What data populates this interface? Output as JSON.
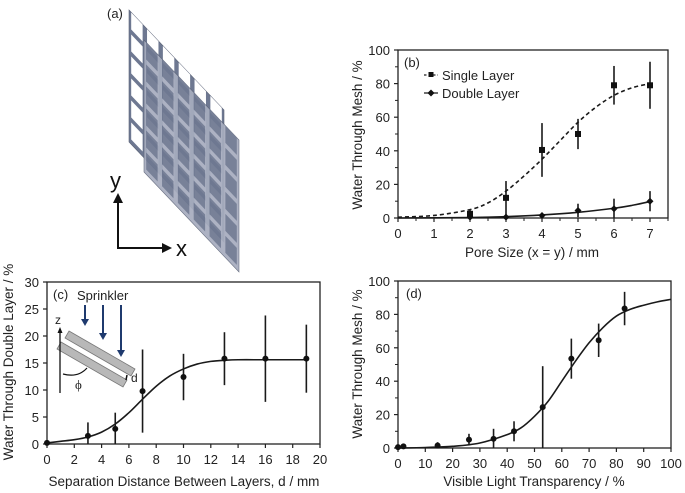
{
  "figure": {
    "panel_a": {
      "label": "(a)",
      "axis_y_label": "y",
      "axis_x_label": "x",
      "mesh_back_color": "#6e7891",
      "mesh_front_color": "#a7adbf",
      "grid_cells": 6
    }
  },
  "chart_data": [
    {
      "id": "b",
      "type": "line",
      "panel_label": "(b)",
      "title": "",
      "xlabel": "Pore Size (x = y) / mm",
      "ylabel": "Water Through Mesh / %",
      "xlim": [
        0,
        7.5
      ],
      "ylim": [
        0,
        100
      ],
      "xticks": [
        0,
        1,
        2,
        3,
        4,
        5,
        6,
        7
      ],
      "yticks": [
        0,
        20,
        40,
        60,
        80,
        100
      ],
      "grid": false,
      "legend": "top-left",
      "series": [
        {
          "name": "Single Layer",
          "marker": "square",
          "line": "dashed",
          "x": [
            2,
            3,
            4,
            5,
            6,
            7
          ],
          "y": [
            2.5,
            12,
            40.5,
            50,
            79,
            79
          ],
          "err": [
            2.5,
            10,
            16,
            9,
            11.5,
            14
          ],
          "fit": [
            [
              0,
              0.5
            ],
            [
              1,
              1.5
            ],
            [
              2,
              5
            ],
            [
              2.5,
              9
            ],
            [
              3,
              16
            ],
            [
              3.5,
              25
            ],
            [
              4,
              35
            ],
            [
              4.5,
              46
            ],
            [
              5,
              57
            ],
            [
              5.5,
              66
            ],
            [
              6,
              73
            ],
            [
              6.5,
              77.5
            ],
            [
              7,
              80
            ]
          ]
        },
        {
          "name": "Double Layer",
          "marker": "diamond",
          "line": "solid",
          "x": [
            2,
            3,
            4,
            5,
            6,
            7
          ],
          "y": [
            0.5,
            0.5,
            1.5,
            4.5,
            5.5,
            10
          ],
          "err": [
            1,
            0.5,
            1.5,
            4,
            6,
            6
          ],
          "fit": [
            [
              0,
              0
            ],
            [
              2,
              0.3
            ],
            [
              3,
              0.8
            ],
            [
              4,
              1.8
            ],
            [
              5,
              3.4
            ],
            [
              6,
              5.8
            ],
            [
              6.5,
              7.5
            ],
            [
              7,
              9.8
            ]
          ]
        }
      ]
    },
    {
      "id": "c",
      "type": "line",
      "panel_label": "(c)",
      "title": "",
      "xlabel": "Separation Distance Between Layers, d / mm",
      "ylabel": "Water Through Double Layer / %",
      "xlim": [
        0,
        20
      ],
      "ylim": [
        0,
        30
      ],
      "xticks": [
        0,
        2,
        4,
        6,
        8,
        10,
        12,
        14,
        16,
        18,
        20
      ],
      "yticks": [
        0,
        5,
        10,
        15,
        20,
        25,
        30
      ],
      "grid": false,
      "legend": "none",
      "inset": {
        "sprinkler_label": "Sprinkler",
        "z_label": "z",
        "phi_label": "ϕ",
        "d_label": "d",
        "arrow_color": "#1f3a6e"
      },
      "series": [
        {
          "name": "Double Layer",
          "marker": "circle",
          "line": "solid",
          "x": [
            0,
            3,
            5,
            7,
            10,
            13,
            16,
            19
          ],
          "y": [
            0.2,
            1.5,
            2.8,
            9.8,
            12.4,
            15.8,
            15.8,
            15.8
          ],
          "err": [
            0,
            2.5,
            3,
            7.7,
            4.3,
            4.9,
            8,
            6.3
          ],
          "fit": [
            [
              0,
              0.2
            ],
            [
              1,
              0.5
            ],
            [
              2,
              0.8
            ],
            [
              3,
              1.3
            ],
            [
              4,
              2.2
            ],
            [
              5,
              3.7
            ],
            [
              6,
              5.8
            ],
            [
              7,
              8.3
            ],
            [
              8,
              10.7
            ],
            [
              9,
              12.6
            ],
            [
              10,
              13.9
            ],
            [
              11,
              14.8
            ],
            [
              12,
              15.3
            ],
            [
              13,
              15.5
            ],
            [
              14,
              15.6
            ],
            [
              16,
              15.6
            ],
            [
              19,
              15.6
            ]
          ]
        }
      ]
    },
    {
      "id": "d",
      "type": "line",
      "panel_label": "(d)",
      "title": "",
      "xlabel": "Visible Light Transparency / %",
      "ylabel": "Water Through Mesh / %",
      "xlim": [
        0,
        100
      ],
      "ylim": [
        0,
        100
      ],
      "xticks": [
        0,
        10,
        20,
        30,
        40,
        50,
        60,
        70,
        80,
        90,
        100
      ],
      "yticks": [
        0,
        20,
        40,
        60,
        80,
        100
      ],
      "grid": false,
      "legend": "none",
      "series": [
        {
          "name": "Mesh",
          "marker": "circle",
          "line": "solid",
          "x": [
            0,
            2,
            14.5,
            26,
            35,
            42.5,
            53,
            63.5,
            73.5,
            83
          ],
          "y": [
            0.5,
            1,
            1.5,
            5,
            5.5,
            10,
            24.5,
            53.5,
            64.5,
            83.5
          ],
          "err": [
            0,
            0.5,
            2,
            3.5,
            6,
            6,
            24.5,
            12,
            10,
            10
          ],
          "fit": [
            [
              0,
              0
            ],
            [
              10,
              0.3
            ],
            [
              20,
              1
            ],
            [
              30,
              3
            ],
            [
              40,
              8
            ],
            [
              45,
              12
            ],
            [
              50,
              19
            ],
            [
              55,
              28
            ],
            [
              60,
              40
            ],
            [
              65,
              52
            ],
            [
              70,
              63
            ],
            [
              75,
              72
            ],
            [
              80,
              79
            ],
            [
              85,
              83
            ],
            [
              90,
              85.5
            ],
            [
              95,
              87.5
            ],
            [
              100,
              89
            ]
          ]
        }
      ]
    }
  ]
}
